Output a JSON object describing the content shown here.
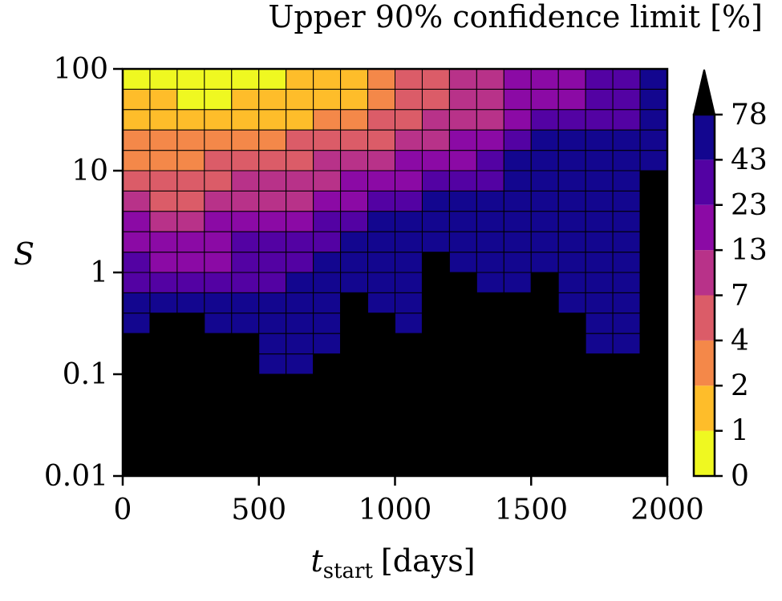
{
  "chart_data": {
    "type": "heatmap",
    "title": "Upper 90% confidence limit [%]",
    "xlabel": {
      "main": "t",
      "sub": "start",
      "unit": "[days]"
    },
    "ylabel": "S",
    "x_ticks": [
      "0",
      "500",
      "1000",
      "1500",
      "2000"
    ],
    "y_ticks": [
      "0.01",
      "0.1",
      "1",
      "10",
      "100"
    ],
    "xlim": [
      0,
      2000
    ],
    "ylim": [
      0.01,
      100
    ],
    "yscale": "log",
    "x_bins": [
      0,
      100,
      200,
      300,
      400,
      500,
      600,
      700,
      800,
      900,
      1000,
      1100,
      1200,
      1300,
      1400,
      1500,
      1600,
      1700,
      1800,
      1900,
      2000
    ],
    "y_bins": [
      0.01,
      0.0158,
      0.0251,
      0.0398,
      0.0631,
      0.1,
      0.158,
      0.251,
      0.398,
      0.631,
      1,
      1.58,
      2.51,
      3.98,
      6.31,
      10,
      15.8,
      25.1,
      39.8,
      63.1,
      100
    ],
    "grid_rows_top_to_bottom": [
      [
        0,
        0,
        0,
        0,
        0,
        0,
        1,
        1,
        1,
        2,
        3,
        3,
        4,
        4,
        5,
        5,
        5,
        6,
        6,
        7
      ],
      [
        1,
        1,
        0,
        0,
        1,
        1,
        1,
        1,
        1,
        2,
        3,
        3,
        4,
        4,
        5,
        5,
        5,
        6,
        6,
        7
      ],
      [
        1,
        1,
        1,
        1,
        1,
        1,
        1,
        2,
        2,
        3,
        3,
        4,
        4,
        4,
        5,
        6,
        6,
        6,
        6,
        7
      ],
      [
        2,
        2,
        2,
        2,
        2,
        2,
        3,
        3,
        3,
        3,
        4,
        4,
        5,
        5,
        6,
        7,
        7,
        7,
        7,
        7
      ],
      [
        2,
        2,
        2,
        3,
        3,
        3,
        3,
        4,
        4,
        4,
        5,
        5,
        5,
        6,
        7,
        7,
        7,
        7,
        7,
        7
      ],
      [
        3,
        3,
        3,
        3,
        4,
        4,
        4,
        4,
        5,
        5,
        5,
        6,
        6,
        6,
        7,
        7,
        7,
        7,
        7,
        -1
      ],
      [
        4,
        3,
        3,
        4,
        4,
        4,
        4,
        5,
        5,
        6,
        6,
        7,
        7,
        7,
        7,
        7,
        7,
        7,
        7,
        -1
      ],
      [
        5,
        4,
        4,
        5,
        5,
        5,
        5,
        6,
        6,
        7,
        7,
        7,
        7,
        7,
        7,
        7,
        7,
        7,
        7,
        -1
      ],
      [
        5,
        5,
        5,
        5,
        6,
        6,
        6,
        6,
        7,
        7,
        7,
        7,
        7,
        7,
        7,
        7,
        7,
        7,
        7,
        -1
      ],
      [
        6,
        5,
        5,
        5,
        6,
        6,
        6,
        7,
        7,
        7,
        7,
        -1,
        7,
        7,
        7,
        7,
        7,
        7,
        7,
        -1
      ],
      [
        6,
        6,
        6,
        6,
        6,
        6,
        7,
        7,
        7,
        7,
        7,
        -1,
        -1,
        7,
        7,
        -1,
        7,
        7,
        7,
        -1
      ],
      [
        7,
        7,
        7,
        7,
        7,
        7,
        7,
        7,
        -1,
        7,
        7,
        -1,
        -1,
        -1,
        -1,
        -1,
        7,
        7,
        7,
        -1
      ],
      [
        7,
        -1,
        -1,
        7,
        7,
        7,
        7,
        7,
        -1,
        -1,
        7,
        -1,
        -1,
        -1,
        -1,
        -1,
        -1,
        7,
        7,
        -1
      ],
      [
        -1,
        -1,
        -1,
        -1,
        -1,
        7,
        7,
        7,
        -1,
        -1,
        -1,
        -1,
        -1,
        -1,
        -1,
        -1,
        -1,
        7,
        7,
        -1
      ],
      [
        -1,
        -1,
        -1,
        -1,
        -1,
        7,
        7,
        -1,
        -1,
        -1,
        -1,
        -1,
        -1,
        -1,
        -1,
        -1,
        -1,
        -1,
        -1,
        -1
      ],
      [
        -1,
        -1,
        -1,
        -1,
        -1,
        -1,
        -1,
        -1,
        -1,
        -1,
        -1,
        -1,
        -1,
        -1,
        -1,
        -1,
        -1,
        -1,
        -1,
        -1
      ],
      [
        -1,
        -1,
        -1,
        -1,
        -1,
        -1,
        -1,
        -1,
        -1,
        -1,
        -1,
        -1,
        -1,
        -1,
        -1,
        -1,
        -1,
        -1,
        -1,
        -1
      ],
      [
        -1,
        -1,
        -1,
        -1,
        -1,
        -1,
        -1,
        -1,
        -1,
        -1,
        -1,
        -1,
        -1,
        -1,
        -1,
        -1,
        -1,
        -1,
        -1,
        -1
      ],
      [
        -1,
        -1,
        -1,
        -1,
        -1,
        -1,
        -1,
        -1,
        -1,
        -1,
        -1,
        -1,
        -1,
        -1,
        -1,
        -1,
        -1,
        -1,
        -1,
        -1
      ],
      [
        -1,
        -1,
        -1,
        -1,
        -1,
        -1,
        -1,
        -1,
        -1,
        -1,
        -1,
        -1,
        -1,
        -1,
        -1,
        -1,
        -1,
        -1,
        -1,
        -1
      ]
    ],
    "colorbar": {
      "labels": [
        "0",
        "1",
        "2",
        "4",
        "7",
        "13",
        "23",
        "43",
        "78"
      ],
      "colors": [
        "#eff821",
        "#febd2a",
        "#f48849",
        "#db5c68",
        "#b83289",
        "#8b0aa5",
        "#5302a3",
        "#13068f"
      ],
      "extend": "max",
      "extend_color": "#000000",
      "no_data_color": "#000000"
    }
  }
}
